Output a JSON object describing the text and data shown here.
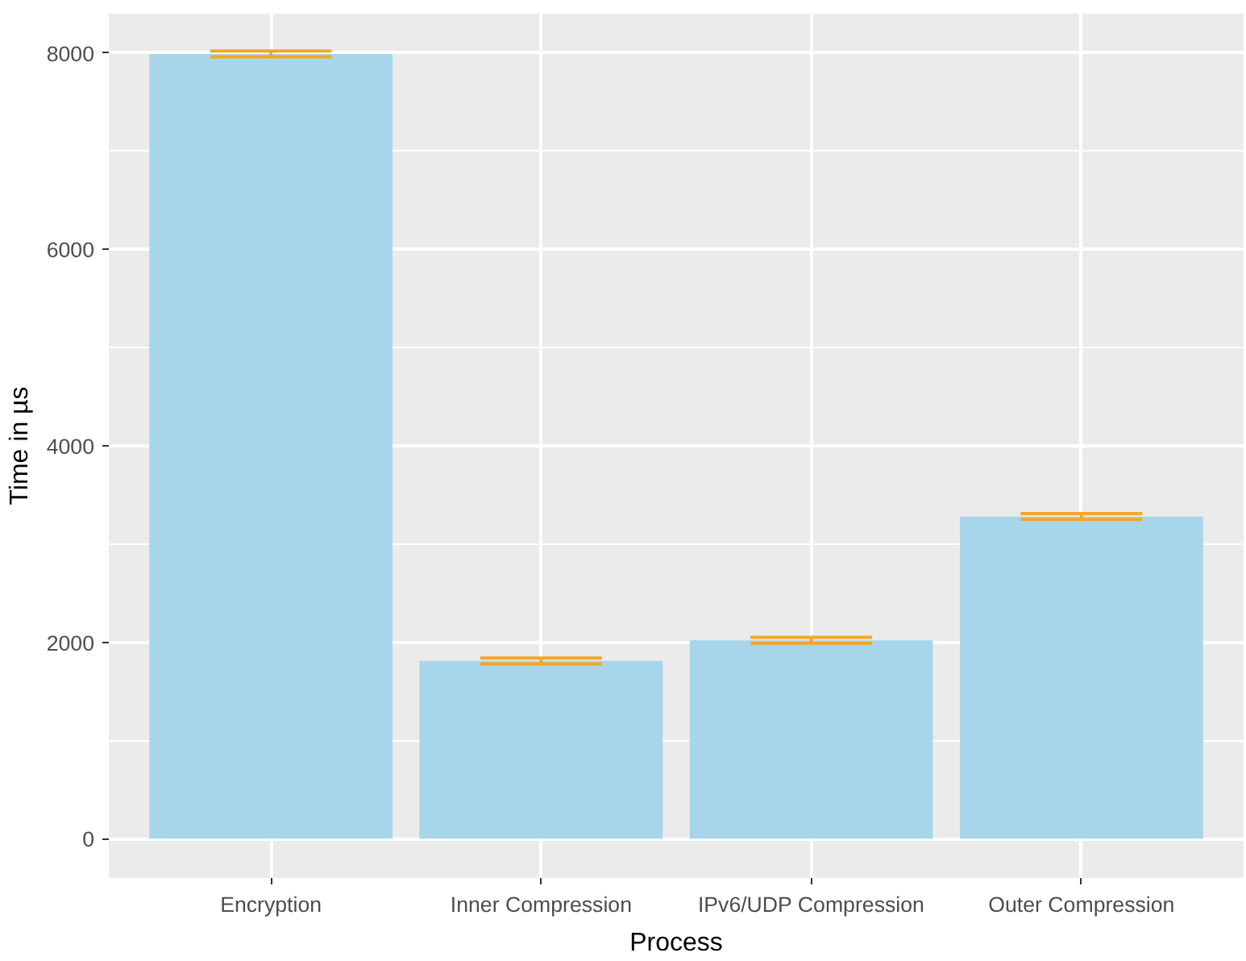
{
  "chart_data": {
    "type": "bar",
    "xlabel": "Process",
    "ylabel": "Time in µs",
    "categories": [
      "Encryption",
      "Inner Compression",
      "IPv6/UDP Compression",
      "Outer Compression"
    ],
    "series": [
      {
        "color": "#a7d6ea",
        "values": [
          7990,
          1810,
          2020,
          3280
        ],
        "errors": [
          30,
          30,
          30,
          30
        ]
      }
    ],
    "ylim": [
      -400,
      8400
    ],
    "yticks": [
      0,
      2000,
      4000,
      6000,
      8000
    ],
    "grid": true
  }
}
